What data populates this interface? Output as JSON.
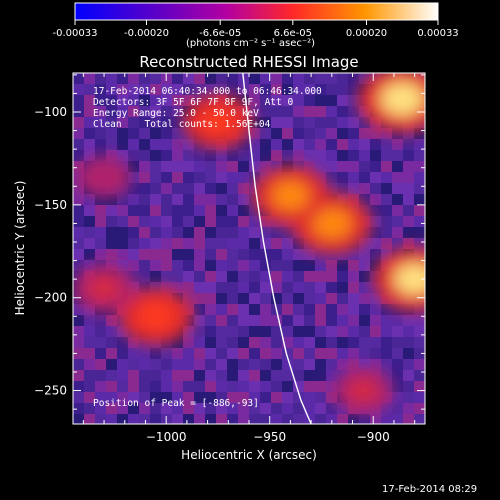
{
  "colorbar": {
    "ticks": [
      "-0.00033",
      "-0.00020",
      "-6.6e-05",
      "6.6e-05",
      "0.00020",
      "0.00033"
    ],
    "units_label": "(photons cm⁻² s⁻¹ asec⁻²)"
  },
  "chart_data": {
    "type": "heatmap",
    "title": "Reconstructed RHESSI Image",
    "xlabel": "Heliocentric X (arcsec)",
    "ylabel": "Heliocentric Y (arcsec)",
    "xlim": [
      -1045,
      -875
    ],
    "ylim": [
      -268,
      -79
    ],
    "xticks": [
      -1000,
      -950,
      -900
    ],
    "yticks": [
      -100,
      -150,
      -200,
      -250
    ],
    "xtick_labels": [
      "−1000",
      "−950",
      "−900"
    ],
    "ytick_labels": [
      "−100",
      "−150",
      "−200",
      "−250"
    ],
    "colorbar_range": [
      -0.00033,
      0.00033
    ],
    "annotations": [
      "17-Feb-2014 06:40:34.000 to 06:46:34.000",
      "Detectors: 3F 5F 6F 7F 8F 9F, Att 0",
      "Energy Range: 25.0 - 50.0 keV",
      "Clean    Total counts: 1.56E+04"
    ],
    "peak_label": "Position of Peak = [-886,-93]",
    "peak_position": [
      -886,
      -93
    ],
    "limb_curve": [
      [
        -963,
        -79
      ],
      [
        -960,
        -110
      ],
      [
        -957,
        -140
      ],
      [
        -953,
        -170
      ],
      [
        -948,
        -200
      ],
      [
        -942,
        -230
      ],
      [
        -935,
        -255
      ],
      [
        -930,
        -268
      ]
    ],
    "hot_regions": [
      {
        "x": -886,
        "y": -93,
        "intensity": 0.00033
      },
      {
        "x": -920,
        "y": -160,
        "intensity": 0.00028
      },
      {
        "x": -880,
        "y": -190,
        "intensity": 0.0003
      },
      {
        "x": -940,
        "y": -145,
        "intensity": 0.00026
      },
      {
        "x": -1005,
        "y": -210,
        "intensity": 0.00024
      },
      {
        "x": -975,
        "y": -105,
        "intensity": 0.00022
      },
      {
        "x": -1030,
        "y": -195,
        "intensity": 0.00018
      },
      {
        "x": -905,
        "y": -250,
        "intensity": 0.00015
      },
      {
        "x": -1030,
        "y": -135,
        "intensity": 0.00012
      }
    ]
  },
  "footer_timestamp": "17-Feb-2014 08:29"
}
